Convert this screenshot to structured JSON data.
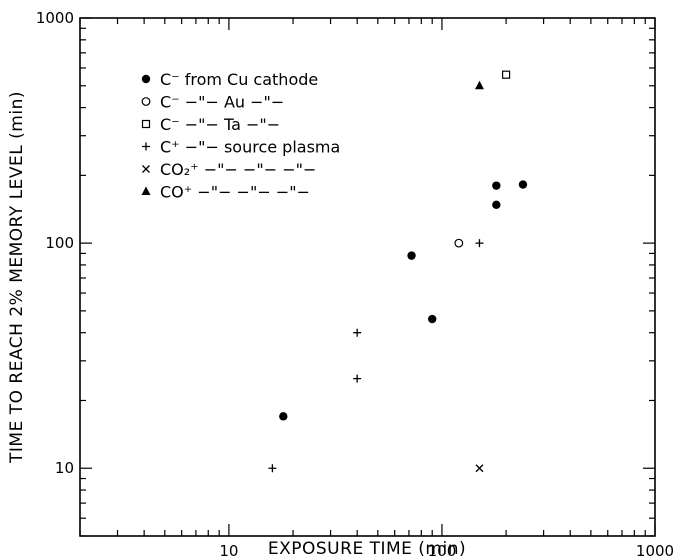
{
  "chart_data": {
    "type": "scatter",
    "title": "",
    "xlabel": "EXPOSURE TIME (min)",
    "ylabel": "TIME TO REACH 2% MEMORY LEVEL (min)",
    "xscale": "log",
    "yscale": "log",
    "xlim": [
      2,
      1000
    ],
    "ylim": [
      5,
      1000
    ],
    "x_ticks": [
      10,
      100,
      1000
    ],
    "y_ticks": [
      10,
      100,
      1000
    ],
    "x_tick_labels": [
      "10",
      "100",
      "1000"
    ],
    "y_tick_labels": [
      "10",
      "100",
      "1000"
    ],
    "grid": false,
    "legend_position": "top-left",
    "legend": [
      {
        "label": "C⁻ from Cu cathode"
      },
      {
        "label": "C⁻ −\"− Au −\"−"
      },
      {
        "label": "C⁻ −\"− Ta −\"−"
      },
      {
        "label": "C⁺ −\"− source plasma"
      },
      {
        "label": "CO₂⁺ −\"− −\"− −\"−"
      },
      {
        "label": "CO⁺ −\"− −\"− −\"−"
      }
    ],
    "series": [
      {
        "name": "C⁻ from Cu cathode",
        "marker": "filled-circle",
        "points": [
          [
            18,
            17
          ],
          [
            72,
            88
          ],
          [
            90,
            46
          ],
          [
            180,
            180
          ],
          [
            180,
            148
          ],
          [
            240,
            182
          ]
        ]
      },
      {
        "name": "C⁻ Au",
        "marker": "open-circle",
        "points": [
          [
            120,
            100
          ]
        ]
      },
      {
        "name": "C⁻ Ta",
        "marker": "open-square",
        "points": [
          [
            200,
            560
          ]
        ]
      },
      {
        "name": "C⁺ source plasma",
        "marker": "plus",
        "points": [
          [
            16,
            10
          ],
          [
            40,
            40
          ],
          [
            40,
            25
          ],
          [
            150,
            100
          ]
        ]
      },
      {
        "name": "CO₂⁺",
        "marker": "cross",
        "points": [
          [
            150,
            10
          ]
        ]
      },
      {
        "name": "CO⁺",
        "marker": "filled-triangle",
        "points": [
          [
            150,
            500
          ]
        ]
      }
    ]
  }
}
